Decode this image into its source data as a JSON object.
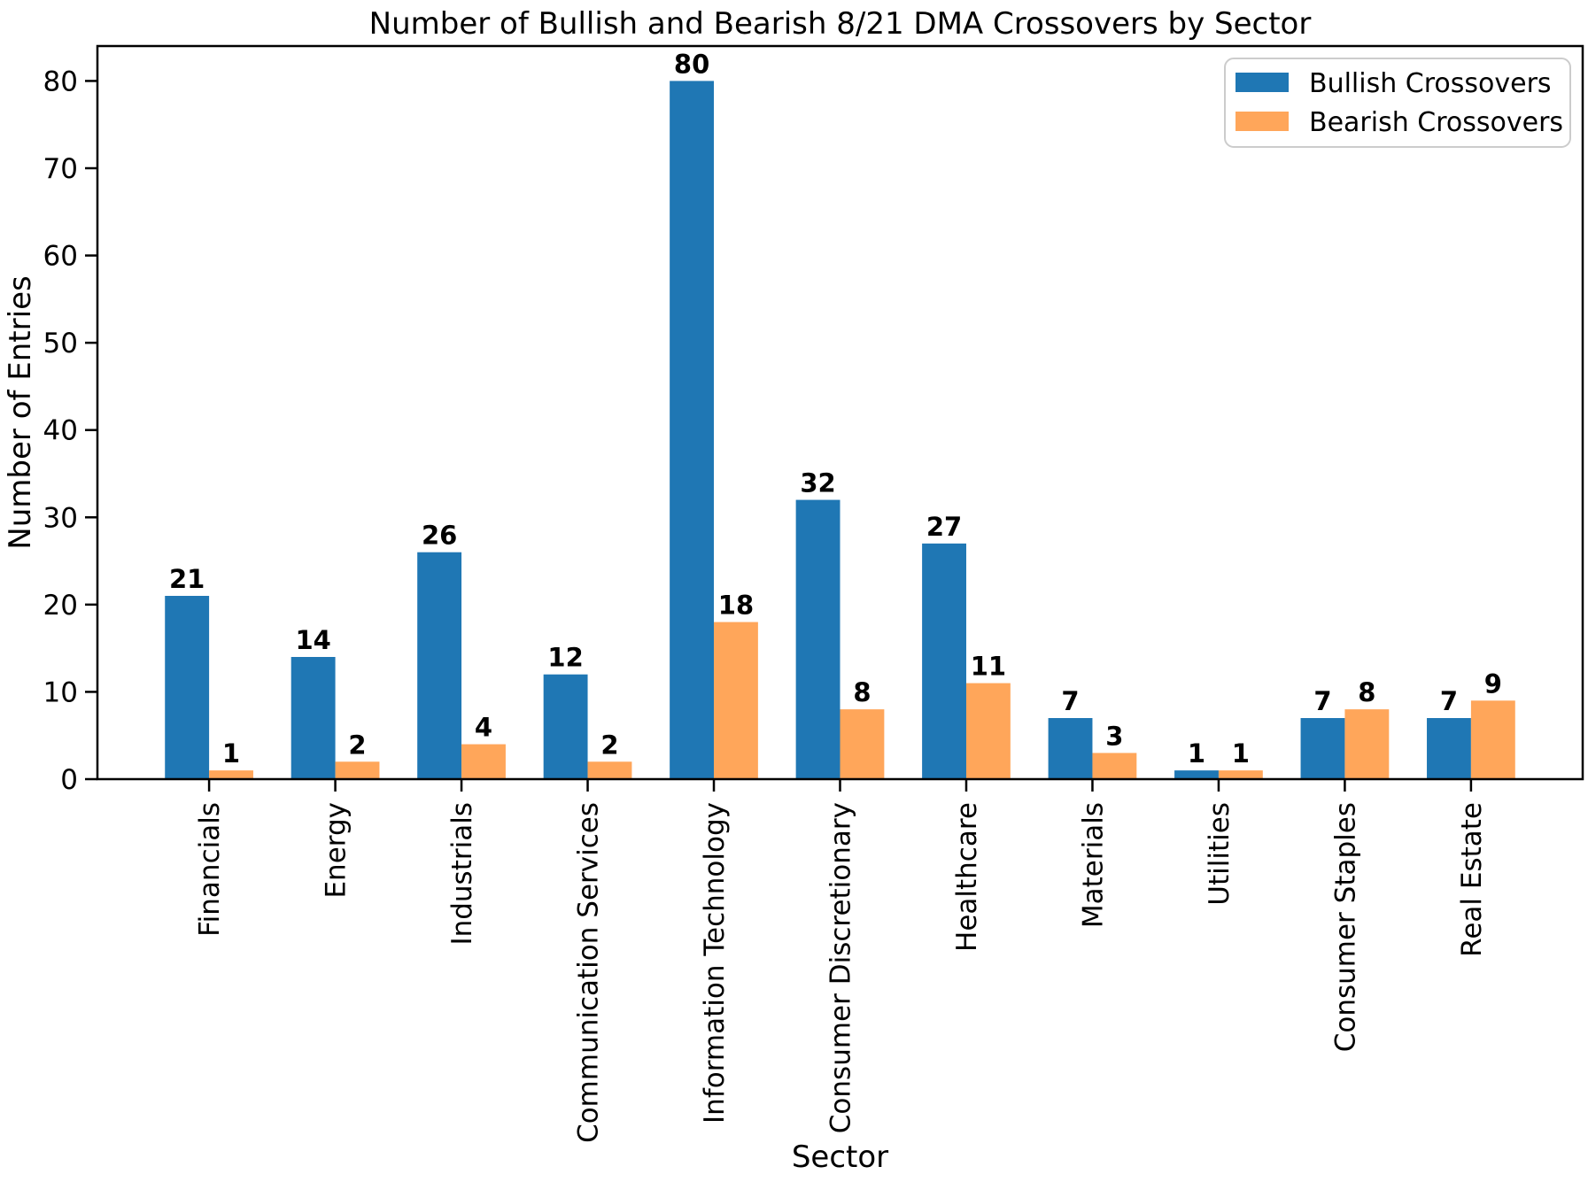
{
  "chart_data": {
    "type": "bar",
    "title": "Number of Bullish and Bearish 8/21 DMA Crossovers by Sector",
    "xlabel": "Sector",
    "ylabel": "Number of Entries",
    "categories": [
      "Financials",
      "Energy",
      "Industrials",
      "Communication Services",
      "Information Technology",
      "Consumer Discretionary",
      "Healthcare",
      "Materials",
      "Utilities",
      "Consumer Staples",
      "Real Estate"
    ],
    "series": [
      {
        "name": "Bullish Crossovers",
        "color": "#1f77b4",
        "values": [
          21,
          14,
          26,
          12,
          80,
          32,
          27,
          7,
          1,
          7,
          7
        ]
      },
      {
        "name": "Bearish Crossovers",
        "color": "#ffa65a",
        "values": [
          1,
          2,
          4,
          2,
          18,
          8,
          11,
          3,
          1,
          8,
          9
        ]
      }
    ],
    "ylim": [
      0,
      84
    ],
    "yticks": [
      0,
      10,
      20,
      30,
      40,
      50,
      60,
      70,
      80
    ],
    "x_tick_rotation": -90,
    "bar_value_labels": true,
    "grid": false,
    "legend": {
      "position": "upper-right",
      "entries": [
        "Bullish Crossovers",
        "Bearish Crossovers"
      ]
    }
  },
  "colors": {
    "bullish": "#1f77b4",
    "bearish": "#ffa65a",
    "axis": "#000000",
    "text": "#000000",
    "legend_border": "#cccccc",
    "legend_background": "#ffffff",
    "background": "#ffffff"
  }
}
